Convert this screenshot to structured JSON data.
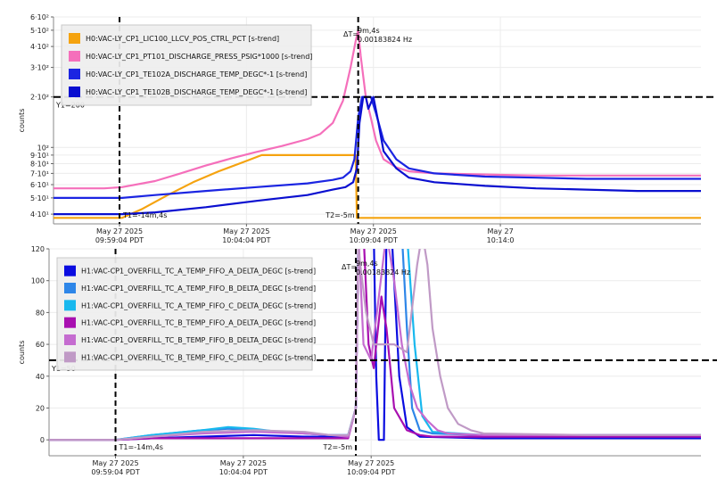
{
  "chart_data": [
    {
      "type": "line",
      "ylabel": "counts",
      "yscale": "log",
      "ylim": [
        35,
        600
      ],
      "y_ticks": [
        {
          "value": 40,
          "label": "4·10¹"
        },
        {
          "value": 50,
          "label": "5·10¹"
        },
        {
          "value": 60,
          "label": "6·10¹"
        },
        {
          "value": 70,
          "label": "7·10¹"
        },
        {
          "value": 80,
          "label": "8·10¹"
        },
        {
          "value": 90,
          "label": "9·10¹"
        },
        {
          "value": 100,
          "label": "10²"
        },
        {
          "value": 200,
          "label": "2·10²"
        },
        {
          "value": 300,
          "label": "3·10²"
        },
        {
          "value": 400,
          "label": "4·10²"
        },
        {
          "value": 500,
          "label": "5·10²"
        },
        {
          "value": 600,
          "label": "6·10²"
        }
      ],
      "xlim": [
        -17,
        8.5
      ],
      "x_ticks": [
        {
          "value": -14.4,
          "line1": "May 27 2025",
          "line2": "09:59:04 PDT"
        },
        {
          "value": -9.4,
          "line1": "May 27 2025",
          "line2": "10:04:04 PDT"
        },
        {
          "value": -4.4,
          "line1": "May 27 2025",
          "line2": "10:09:04 PDT"
        },
        {
          "value": 0.6,
          "line1": "May 27",
          "line2": "10:14:0"
        }
      ],
      "cursors": {
        "t1": -14.4,
        "t2": -5.0,
        "t1_label": "T1=-14m,4s",
        "t2_label": "T2=-5m",
        "y1": 200,
        "y1_label": "Y1=200"
      },
      "delta": {
        "label": "ΔT=",
        "line1": "9m,4s",
        "line2": "0.00183824 Hz"
      },
      "series": [
        {
          "name": "H0:VAC-LY_CP1_LIC100_LLCV_POS_CTRL_PCT [s-trend]",
          "color": "#f5a30f",
          "x": [
            -17,
            -14.3,
            -13.5,
            -12.5,
            -11.5,
            -10.5,
            -9.5,
            -8.8,
            -7.5,
            -6,
            -5.1,
            -5.05,
            -4.95,
            0,
            5,
            8.5
          ],
          "y": [
            38,
            38,
            43,
            52,
            62,
            72,
            82,
            90,
            90,
            90,
            90,
            38,
            38,
            38,
            38,
            38
          ]
        },
        {
          "name": "H0:VAC-LY_CP1_PT101_DISCHARGE_PRESS_PSIG*1000 [s-trend]",
          "color": "#f56fbb",
          "x": [
            -17,
            -15,
            -14.3,
            -13,
            -12,
            -11,
            -10,
            -9,
            -8,
            -7,
            -6.5,
            -6,
            -5.6,
            -5.3,
            -5.1,
            -5.0,
            -4.9,
            -4.7,
            -4.5,
            -4.3,
            -4.0,
            -3.5,
            -3,
            -2,
            0,
            2,
            4,
            6,
            8.5
          ],
          "y": [
            57,
            57,
            58,
            63,
            70,
            78,
            86,
            94,
            102,
            112,
            120,
            140,
            190,
            300,
            430,
            500,
            350,
            200,
            150,
            110,
            85,
            76,
            72,
            70,
            69,
            68,
            68,
            68,
            68
          ]
        },
        {
          "name": "H0:VAC-LY_CP1_TE102A_DISCHARGE_TEMP_DEGC*-1 [s-trend]",
          "color": "#1b25e2",
          "x": [
            -17,
            -14.3,
            -13,
            -11,
            -9,
            -7,
            -6,
            -5.6,
            -5.3,
            -5.15,
            -5.0,
            -4.85,
            -4.7,
            -4.6,
            -4.5,
            -4.3,
            -4.0,
            -3.5,
            -3,
            -2,
            0,
            2,
            4,
            6,
            8.5
          ],
          "y": [
            50,
            50,
            52,
            55,
            58,
            61,
            64,
            66,
            72,
            85,
            150,
            200,
            200,
            200,
            200,
            160,
            110,
            85,
            75,
            70,
            67,
            66,
            65,
            65,
            65
          ]
        },
        {
          "name": "H0:VAC-LY_CP1_TE102B_DISCHARGE_TEMP_DEGC*-1 [s-trend]",
          "color": "#0a0fd0",
          "x": [
            -17,
            -14.3,
            -13,
            -11,
            -9,
            -7,
            -6,
            -5.5,
            -5.2,
            -5.05,
            -4.95,
            -4.8,
            -4.7,
            -4.6,
            -4.4,
            -4.2,
            -4.0,
            -3.5,
            -3,
            -2,
            0,
            2,
            4,
            6,
            8.5
          ],
          "y": [
            40,
            40,
            41,
            44,
            48,
            52,
            56,
            58,
            62,
            75,
            140,
            200,
            200,
            170,
            200,
            140,
            95,
            75,
            66,
            62,
            59,
            57,
            56,
            55,
            55
          ]
        }
      ]
    },
    {
      "type": "line",
      "ylabel": "counts",
      "ylim": [
        -10,
        120
      ],
      "y_ticks": [
        {
          "value": 0,
          "label": "0"
        },
        {
          "value": 20,
          "label": "20"
        },
        {
          "value": 40,
          "label": "40"
        },
        {
          "value": 60,
          "label": "60"
        },
        {
          "value": 80,
          "label": "80"
        },
        {
          "value": 100,
          "label": "100"
        },
        {
          "value": 120,
          "label": "120"
        }
      ],
      "xlim": [
        -17,
        8.5
      ],
      "x_ticks": [
        {
          "value": -14.4,
          "line1": "May 27 2025",
          "line2": "09:59:04 PDT"
        },
        {
          "value": -9.4,
          "line1": "May 27 2025",
          "line2": "10:04:04 PDT"
        },
        {
          "value": -4.4,
          "line1": "May 27 2025",
          "line2": "10:09:04 PDT"
        }
      ],
      "cursors": {
        "t1": -14.4,
        "t2": -5.0,
        "t1_label": "T1=-14m,4s",
        "t2_label": "T2=-5m",
        "y1": 50,
        "y1_label": "Y1=50"
      },
      "delta": {
        "label": "ΔT=",
        "line1": "9m,4s",
        "line2": "0.00183824 Hz"
      },
      "series": [
        {
          "name": "H1:VAC-CP1_OVERFILL_TC_A_TEMP_FIFO_A_DELTA_DEGC [s-trend]",
          "color": "#0a0ce0",
          "x": [
            -17,
            -14.4,
            -13,
            -11,
            -9,
            -7,
            -6,
            -5.3,
            -5.0,
            -4.9,
            -4.8,
            -4.7,
            -4.5,
            -4.3,
            -4.2,
            -4.1,
            -3.9,
            -3.8,
            -3.6,
            -3.3,
            -3.0,
            -2.5,
            0,
            4,
            8.5
          ],
          "y": [
            0,
            0,
            1,
            2,
            3,
            2,
            2,
            2,
            20,
            120,
            130,
            130,
            130,
            130,
            40,
            0,
            0,
            130,
            130,
            40,
            8,
            2,
            1,
            1,
            1
          ]
        },
        {
          "name": "H1:VAC-CP1_OVERFILL_TC_A_TEMP_FIFO_B_DELTA_DEGC [s-trend]",
          "color": "#2e86e8",
          "x": [
            -17,
            -14.4,
            -13,
            -11,
            -10,
            -9,
            -8,
            -7,
            -6,
            -5.3,
            -5.0,
            -4.9,
            -4.7,
            -4.5,
            -4.3,
            -4.1,
            -3.8,
            -3.5,
            -3.2,
            -3.0,
            -2.8,
            -2.5,
            -2.0,
            0,
            4,
            8.5
          ],
          "y": [
            0,
            0,
            3,
            6,
            7,
            6,
            5,
            4,
            3,
            3,
            20,
            130,
            130,
            130,
            130,
            130,
            130,
            130,
            130,
            70,
            20,
            6,
            4,
            3,
            3,
            3
          ]
        },
        {
          "name": "H1:VAC-CP1_OVERFILL_TC_A_TEMP_FIFO_C_DELTA_DEGC [s-trend]",
          "color": "#18b8ee",
          "x": [
            -17,
            -14.4,
            -13,
            -11,
            -10,
            -9,
            -8,
            -7,
            -6,
            -5.3,
            -5.0,
            -4.9,
            -4.7,
            -4.2,
            -3.8,
            -3.4,
            -3.2,
            -3.0,
            -2.7,
            -2.4,
            -2.0,
            0,
            4,
            8.5
          ],
          "y": [
            0,
            0,
            3,
            6,
            8,
            7,
            5,
            4,
            3,
            3,
            20,
            130,
            130,
            130,
            130,
            130,
            130,
            130,
            60,
            15,
            5,
            3,
            3,
            3
          ]
        },
        {
          "name": "H1:VAC-CP1_OVERFILL_TC_B_TEMP_FIFO_A_DELTA_DEGC [s-trend]",
          "color": "#a80fb0",
          "x": [
            -17,
            -14.4,
            -13,
            -11,
            -9,
            -7,
            -6,
            -5.3,
            -5.0,
            -4.9,
            -4.7,
            -4.5,
            -4.3,
            -4.0,
            -3.8,
            -3.5,
            -3.0,
            -2.5,
            -2.0,
            0,
            4,
            8.5
          ],
          "y": [
            0,
            0,
            1,
            1,
            1,
            1,
            1,
            1,
            20,
            120,
            130,
            60,
            45,
            90,
            70,
            20,
            6,
            3,
            2,
            2,
            2,
            2
          ]
        },
        {
          "name": "H1:VAC-CP1_OVERFILL_TC_B_TEMP_FIFO_B_DELTA_DEGC [s-trend]",
          "color": "#c56cd0",
          "x": [
            -17,
            -14.4,
            -13,
            -11,
            -9,
            -7,
            -6,
            -5.3,
            -5.0,
            -4.9,
            -4.7,
            -4.4,
            -4.1,
            -3.8,
            -3.5,
            -3.2,
            -2.9,
            -2.6,
            -2.2,
            -1.8,
            -1.4,
            0,
            4,
            8.5
          ],
          "y": [
            0,
            0,
            2,
            4,
            5,
            4,
            3,
            2,
            20,
            130,
            60,
            50,
            90,
            130,
            100,
            60,
            35,
            20,
            12,
            6,
            4,
            3,
            3,
            3
          ]
        },
        {
          "name": "H1:VAC-CP1_OVERFILL_TC_B_TEMP_FIFO_C_DELTA_DEGC [s-trend]",
          "color": "#c09ac6",
          "x": [
            -17,
            -14.4,
            -13,
            -11,
            -9,
            -7,
            -6,
            -5.3,
            -5.0,
            -4.9,
            -4.6,
            -4.3,
            -4.0,
            -3.5,
            -3.0,
            -2.6,
            -2.4,
            -2.2,
            -2.0,
            -1.7,
            -1.4,
            -1.0,
            -0.5,
            0,
            4,
            8.5
          ],
          "y": [
            0,
            0,
            2,
            5,
            6,
            5,
            3,
            3,
            20,
            120,
            80,
            60,
            60,
            60,
            55,
            110,
            130,
            110,
            70,
            40,
            20,
            10,
            6,
            4,
            3,
            3
          ]
        }
      ]
    }
  ]
}
